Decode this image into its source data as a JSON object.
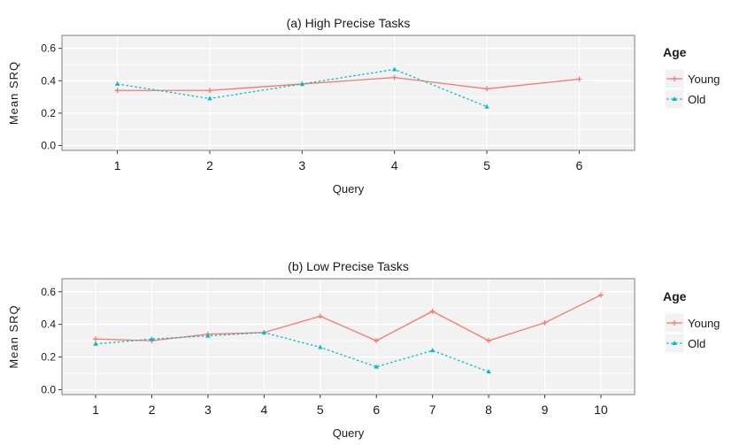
{
  "colors": {
    "young": "#F8766D",
    "old": "#00BFC4",
    "panel_bg": "#F2F2F2",
    "grid": "#E0E0E0",
    "text": "#1a1a1a"
  },
  "legend": {
    "title": "Age",
    "items": [
      "Young",
      "Old"
    ]
  },
  "chart_data": [
    {
      "type": "line",
      "title": "(a) High Precise Tasks",
      "xlabel": "Query",
      "ylabel": "Mean SRQ",
      "x_categories": [
        1,
        2,
        3,
        4,
        5,
        6
      ],
      "ylim": [
        -0.03,
        0.68
      ],
      "yticks": [
        0.0,
        0.2,
        0.4,
        0.6
      ],
      "ytick_labels": [
        "0.0",
        "0.2",
        "0.4",
        "0.6"
      ],
      "grid": true,
      "legend_position": "right",
      "series": [
        {
          "name": "Young",
          "linestyle": "solid",
          "x": [
            1,
            2,
            3,
            4,
            5,
            6
          ],
          "y": [
            0.34,
            0.34,
            0.38,
            0.42,
            0.35,
            0.41
          ]
        },
        {
          "name": "Old",
          "linestyle": "dotted",
          "x": [
            1,
            2,
            3,
            4,
            5
          ],
          "y": [
            0.38,
            0.29,
            0.38,
            0.47,
            0.24
          ]
        }
      ]
    },
    {
      "type": "line",
      "title": "(b) Low Precise Tasks",
      "xlabel": "Query",
      "ylabel": "Mean SRQ",
      "x_categories": [
        1,
        2,
        3,
        4,
        5,
        6,
        7,
        8,
        9,
        10
      ],
      "ylim": [
        -0.03,
        0.68
      ],
      "yticks": [
        0.0,
        0.2,
        0.4,
        0.6
      ],
      "ytick_labels": [
        "0.0",
        "0.2",
        "0.4",
        "0.6"
      ],
      "grid": true,
      "legend_position": "right",
      "series": [
        {
          "name": "Young",
          "linestyle": "solid",
          "x": [
            1,
            2,
            3,
            4,
            5,
            6,
            7,
            8,
            9,
            10
          ],
          "y": [
            0.31,
            0.3,
            0.34,
            0.35,
            0.45,
            0.3,
            0.48,
            0.3,
            0.41,
            0.58
          ]
        },
        {
          "name": "Old",
          "linestyle": "dotted",
          "x": [
            1,
            2,
            3,
            4,
            5,
            6,
            7,
            8
          ],
          "y": [
            0.28,
            0.31,
            0.33,
            0.35,
            0.26,
            0.14,
            0.24,
            0.11
          ]
        }
      ]
    }
  ]
}
